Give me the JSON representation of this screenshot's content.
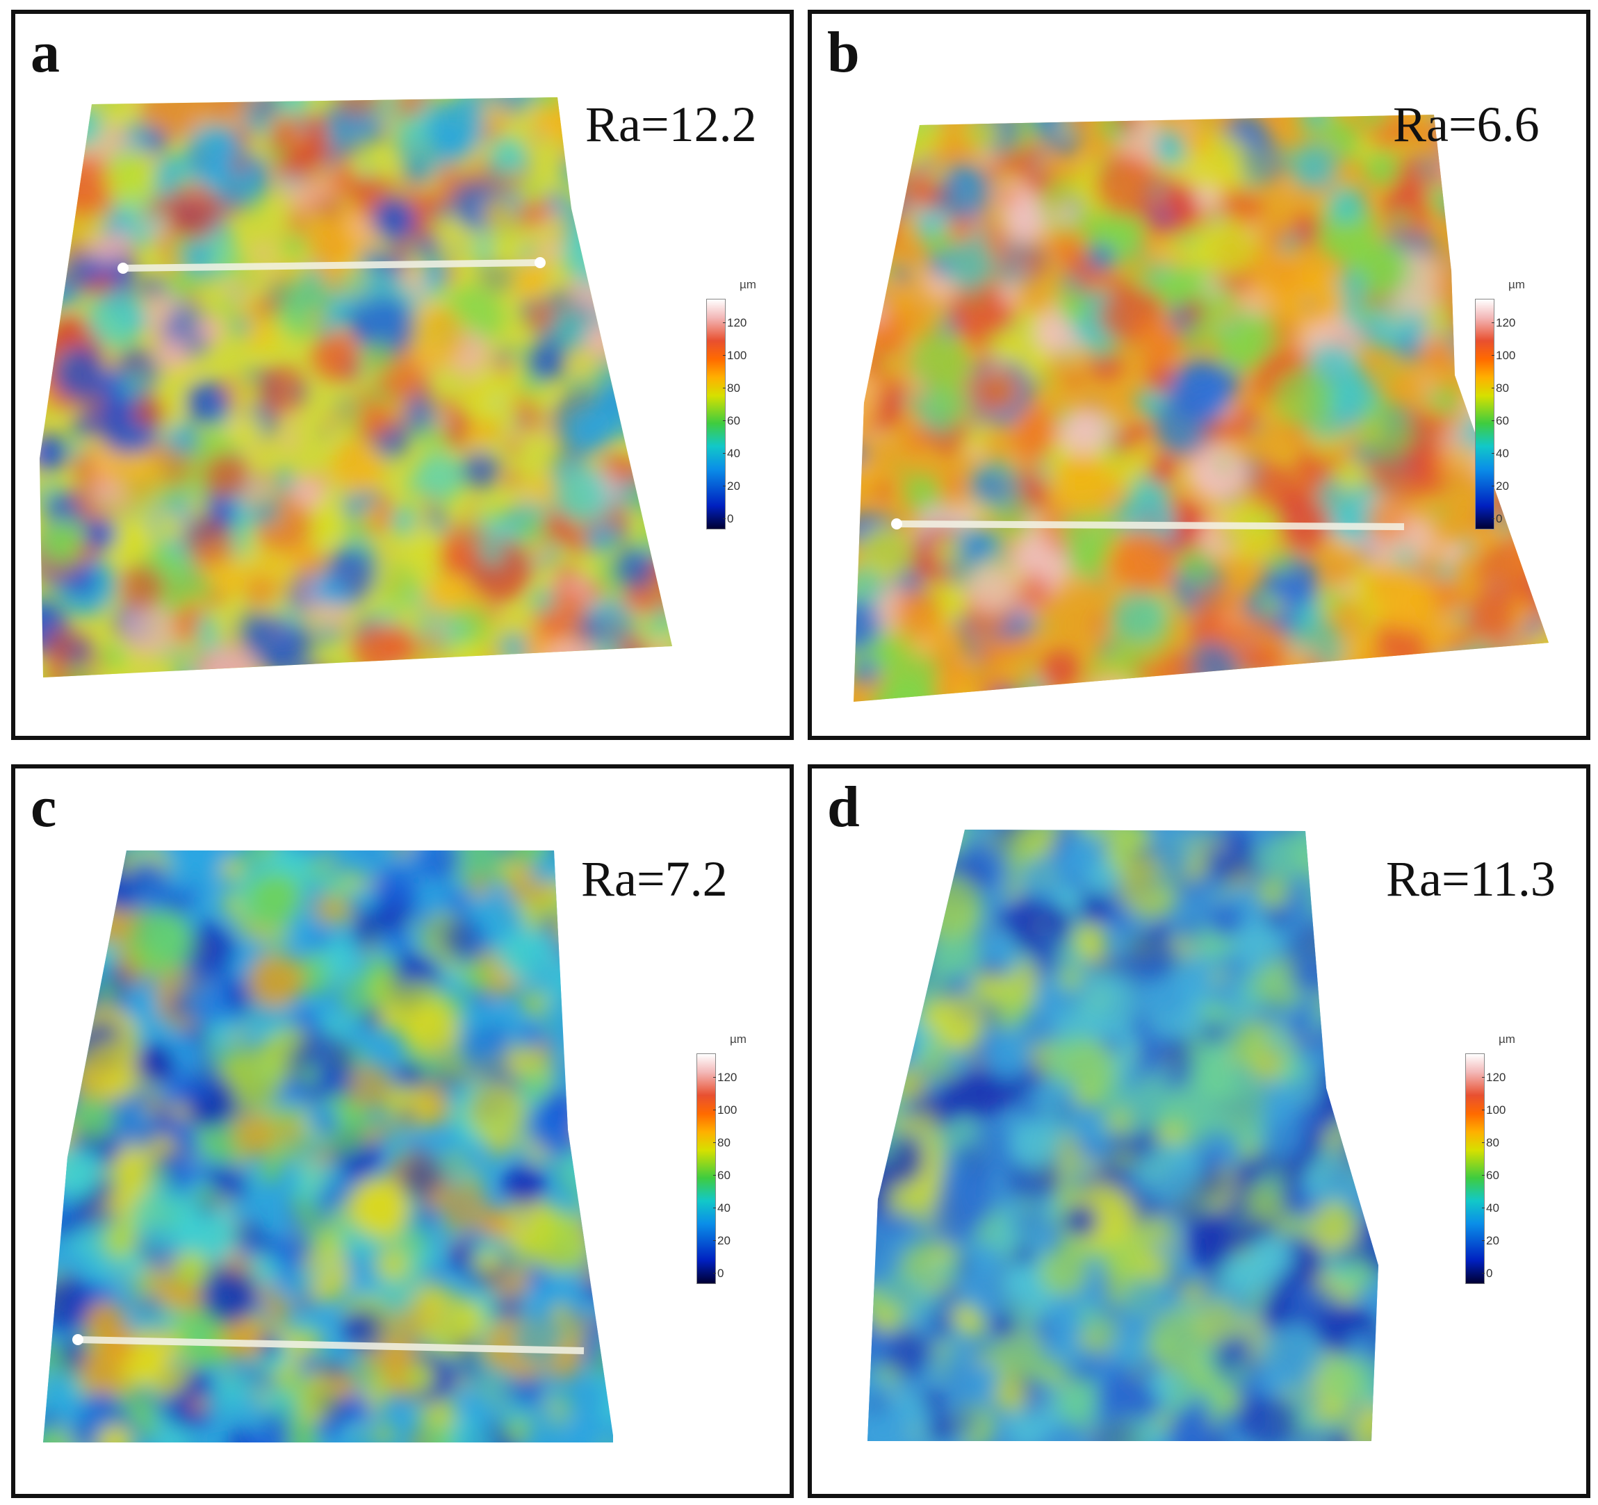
{
  "panels": [
    {
      "id": "a",
      "letter": "a",
      "ra": "Ra=12.2",
      "palette": [
        "#1f4fd0",
        "#27a6e0",
        "#4fd2c0",
        "#7bd650",
        "#d8df20",
        "#f2b81a",
        "#e8652a",
        "#d94830",
        "#f0b0b0"
      ]
    },
    {
      "id": "b",
      "letter": "b",
      "ra": "Ra=6.6",
      "palette": [
        "#2a70d8",
        "#3fc6c8",
        "#7fd64a",
        "#d6df20",
        "#f2b01a",
        "#ee7a24",
        "#e25a2c",
        "#d9473a",
        "#eec0c0"
      ]
    },
    {
      "id": "c",
      "letter": "c",
      "ra": "Ra=7.2",
      "palette": [
        "#0d2bb8",
        "#1b60dc",
        "#2aa6e4",
        "#3fcfd2",
        "#6fd25a",
        "#b8d830",
        "#dcd820",
        "#e0a020"
      ]
    },
    {
      "id": "d",
      "letter": "d",
      "ra": "Ra=11.3",
      "palette": [
        "#1a36b4",
        "#2a6ad0",
        "#3aa0dc",
        "#4ec2d6",
        "#6acf96",
        "#9ad25a",
        "#c8d838"
      ]
    }
  ],
  "color_scale": {
    "unit": "µm",
    "ticks": [
      "120",
      "100",
      "80",
      "60",
      "40",
      "20",
      "0"
    ]
  }
}
